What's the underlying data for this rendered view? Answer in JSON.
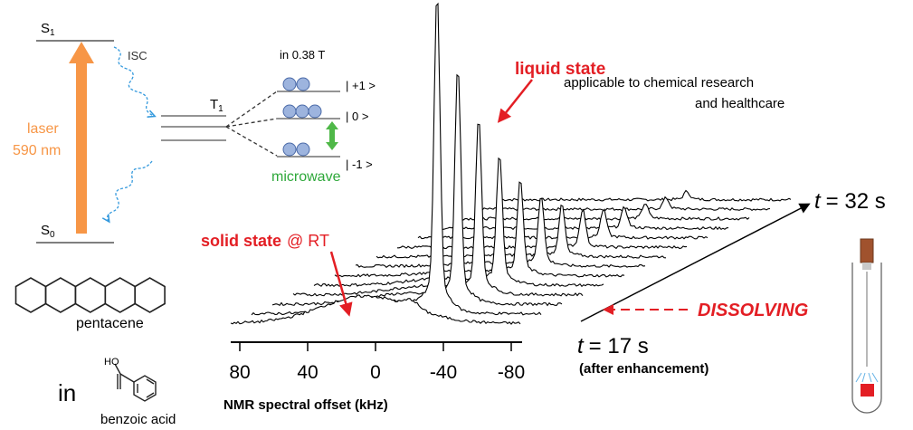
{
  "energy_diagram": {
    "s1": {
      "letter": "S",
      "sub": "1"
    },
    "s0": {
      "letter": "S",
      "sub": "0"
    },
    "isc": "ISC",
    "t1": {
      "letter": "T",
      "sub": "1"
    },
    "field": "in 0.38 T",
    "levels": [
      "| +1 >",
      "| 0 >",
      "| -1 >"
    ],
    "microwave": "microwave",
    "laser": [
      "laser",
      "590 nm"
    ]
  },
  "molecules": {
    "pentacene": "pentacene",
    "in": "in",
    "ho": "HO",
    "benzoic_acid": "benzoic acid"
  },
  "spectra": {
    "liquid_state": "liquid state",
    "application": [
      "applicable to chemical research",
      "and healthcare"
    ],
    "solid_state": "solid state",
    "rt": "@ RT",
    "t_end": {
      "t": "t",
      "rest": "= 32 s"
    },
    "t_start": {
      "t": "t",
      "rest": "= 17 s"
    },
    "after": "(after enhancement)",
    "dissolving": "DISSOLVING",
    "axis_ticks": [
      "80",
      "40",
      "0",
      "-40",
      "-80"
    ],
    "axis_label": "NMR spectral offset (kHz)"
  }
}
